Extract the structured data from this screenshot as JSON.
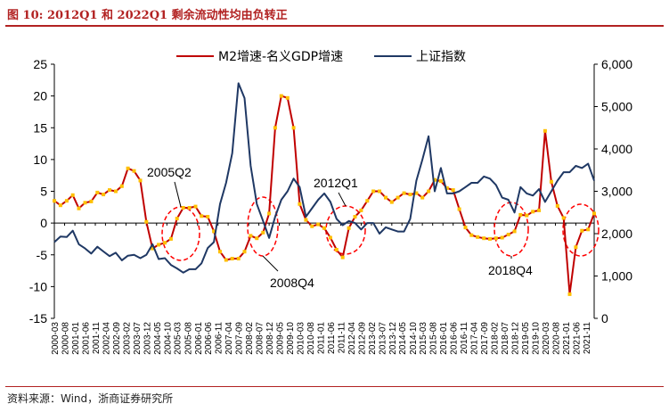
{
  "figure": {
    "title": "图 10: 2012Q1 和 2022Q1 剩余流动性均由负转正",
    "source": "资料来源：Wind，浙商证券研究所"
  },
  "chart_data": {
    "type": "line",
    "x_tick_labels": [
      "2000-03",
      "2000-08",
      "2001-01",
      "2001-06",
      "2001-11",
      "2002-04",
      "2002-09",
      "2003-02",
      "2003-07",
      "2003-12",
      "2004-05",
      "2004-10",
      "2005-03",
      "2005-08",
      "2006-01",
      "2006-06",
      "2006-11",
      "2007-04",
      "2007-09",
      "2008-02",
      "2008-07",
      "2008-12",
      "2009-05",
      "2009-10",
      "2010-03",
      "2010-08",
      "2011-01",
      "2011-06",
      "2011-11",
      "2012-04",
      "2012-09",
      "2013-02",
      "2013-07",
      "2013-12",
      "2014-05",
      "2014-10",
      "2015-03",
      "2015-08",
      "2016-01",
      "2016-06",
      "2016-11",
      "2017-04",
      "2017-09",
      "2018-02",
      "2018-07",
      "2018-12",
      "2019-05",
      "2019-10",
      "2020-03",
      "2020-08",
      "2021-01",
      "2021-06",
      "2021-11"
    ],
    "y_left": {
      "ticks": [
        "25",
        "20",
        "15",
        "10",
        "5",
        "0",
        "-5",
        "-10",
        "-15"
      ],
      "min": -15,
      "max": 25
    },
    "y_right": {
      "ticks": [
        "6,000",
        "5,000",
        "4,000",
        "3,000",
        "2,000",
        "1,000",
        "0"
      ],
      "min": 0,
      "max": 6000
    },
    "legend_position": "top",
    "series": [
      {
        "name": "M2增速-名义GDP增速",
        "axis": "left",
        "color": "#c00000",
        "marker_color": "#ffc000",
        "x": [
          "2000-03",
          "2000-06",
          "2000-09",
          "2000-12",
          "2001-03",
          "2001-06",
          "2001-09",
          "2001-12",
          "2002-03",
          "2002-06",
          "2002-09",
          "2002-12",
          "2003-03",
          "2003-06",
          "2003-09",
          "2003-12",
          "2004-03",
          "2004-06",
          "2004-09",
          "2004-12",
          "2005-03",
          "2005-06",
          "2005-09",
          "2005-12",
          "2006-03",
          "2006-06",
          "2006-09",
          "2006-12",
          "2007-03",
          "2007-06",
          "2007-09",
          "2007-12",
          "2008-03",
          "2008-06",
          "2008-09",
          "2008-12",
          "2009-03",
          "2009-06",
          "2009-09",
          "2009-12",
          "2010-03",
          "2010-06",
          "2010-09",
          "2010-12",
          "2011-03",
          "2011-06",
          "2011-09",
          "2011-12",
          "2012-03",
          "2012-06",
          "2012-09",
          "2012-12",
          "2013-03",
          "2013-06",
          "2013-09",
          "2013-12",
          "2014-03",
          "2014-06",
          "2014-09",
          "2014-12",
          "2015-03",
          "2015-06",
          "2015-09",
          "2015-12",
          "2016-03",
          "2016-06",
          "2016-09",
          "2016-12",
          "2017-03",
          "2017-06",
          "2017-09",
          "2017-12",
          "2018-03",
          "2018-06",
          "2018-09",
          "2018-12",
          "2019-03",
          "2019-06",
          "2019-09",
          "2019-12",
          "2020-03",
          "2020-06",
          "2020-09",
          "2020-12",
          "2021-03",
          "2021-06",
          "2021-09",
          "2021-12",
          "2022-03"
        ],
        "values": [
          3.5,
          2.8,
          3.5,
          4.4,
          2.3,
          3.2,
          3.4,
          4.8,
          4.5,
          5.2,
          5.0,
          5.8,
          8.6,
          8.2,
          6.7,
          0.2,
          -4.0,
          -3.4,
          -3.1,
          -2.5,
          0.7,
          2.4,
          2.4,
          2.6,
          1.1,
          1.0,
          -1.3,
          -4.5,
          -5.8,
          -5.6,
          -5.6,
          -4.5,
          -2.0,
          -2.4,
          -1.5,
          1.5,
          15.0,
          20.0,
          19.7,
          15.0,
          3.0,
          0.5,
          -0.5,
          -0.2,
          -0.8,
          -2.3,
          -4.2,
          -5.4,
          -0.8,
          1.0,
          2.0,
          3.5,
          5.0,
          5.0,
          4.0,
          3.3,
          4.0,
          4.7,
          4.5,
          4.7,
          4.0,
          5.0,
          6.8,
          6.6,
          5.5,
          5.2,
          2.2,
          -0.7,
          -1.9,
          -2.2,
          -2.4,
          -2.5,
          -2.4,
          -2.3,
          -1.8,
          -1.3,
          1.3,
          1.2,
          1.8,
          2.0,
          14.5,
          6.5,
          2.7,
          0.8,
          -11.2,
          -3.8,
          -1.2,
          -1.0,
          1.5
        ]
      },
      {
        "name": "上证指数",
        "axis": "right",
        "color": "#1f3864",
        "x": [
          "2000-03",
          "2000-06",
          "2000-09",
          "2000-12",
          "2001-03",
          "2001-06",
          "2001-09",
          "2001-12",
          "2002-03",
          "2002-06",
          "2002-09",
          "2002-12",
          "2003-03",
          "2003-06",
          "2003-09",
          "2003-12",
          "2004-03",
          "2004-06",
          "2004-09",
          "2004-12",
          "2005-03",
          "2005-06",
          "2005-09",
          "2005-12",
          "2006-03",
          "2006-06",
          "2006-09",
          "2006-12",
          "2007-03",
          "2007-06",
          "2007-09",
          "2007-12",
          "2008-03",
          "2008-06",
          "2008-09",
          "2008-12",
          "2009-03",
          "2009-06",
          "2009-09",
          "2009-12",
          "2010-03",
          "2010-06",
          "2010-09",
          "2010-12",
          "2011-03",
          "2011-06",
          "2011-09",
          "2011-12",
          "2012-03",
          "2012-06",
          "2012-09",
          "2012-12",
          "2013-03",
          "2013-06",
          "2013-09",
          "2013-12",
          "2014-03",
          "2014-06",
          "2014-09",
          "2014-12",
          "2015-03",
          "2015-06",
          "2015-09",
          "2015-12",
          "2016-03",
          "2016-06",
          "2016-09",
          "2016-12",
          "2017-03",
          "2017-06",
          "2017-09",
          "2017-12",
          "2018-03",
          "2018-06",
          "2018-09",
          "2018-12",
          "2019-03",
          "2019-06",
          "2019-09",
          "2019-12",
          "2020-03",
          "2020-06",
          "2020-09",
          "2020-12",
          "2021-03",
          "2021-06",
          "2021-09",
          "2021-12",
          "2022-03"
        ],
        "values": [
          1800,
          1930,
          1920,
          2070,
          1750,
          1650,
          1530,
          1690,
          1580,
          1470,
          1550,
          1370,
          1480,
          1500,
          1420,
          1500,
          1750,
          1400,
          1420,
          1260,
          1180,
          1080,
          1160,
          1160,
          1300,
          1660,
          1800,
          2700,
          3200,
          3900,
          5550,
          5200,
          3600,
          2700,
          2300,
          1900,
          2400,
          2800,
          3000,
          3300,
          3100,
          2400,
          2600,
          2800,
          2950,
          2750,
          2350,
          2200,
          2300,
          2250,
          2100,
          2250,
          2250,
          2000,
          2150,
          2100,
          2050,
          2050,
          2350,
          3250,
          3750,
          4300,
          3000,
          3550,
          2950,
          2950,
          3000,
          3100,
          3200,
          3200,
          3350,
          3300,
          3150,
          2850,
          2800,
          2500,
          3100,
          2950,
          2900,
          3050,
          2750,
          3000,
          3250,
          3450,
          3450,
          3600,
          3550,
          3650,
          3250
        ]
      }
    ],
    "annotations": [
      {
        "label": "2005Q2",
        "x": "2005-06"
      },
      {
        "label": "2008Q4",
        "x": "2008-12"
      },
      {
        "label": "2012Q1",
        "x": "2012-03"
      },
      {
        "label": "2018Q4",
        "x": "2018-12"
      },
      {
        "label": "",
        "x": "2022-03"
      }
    ]
  }
}
